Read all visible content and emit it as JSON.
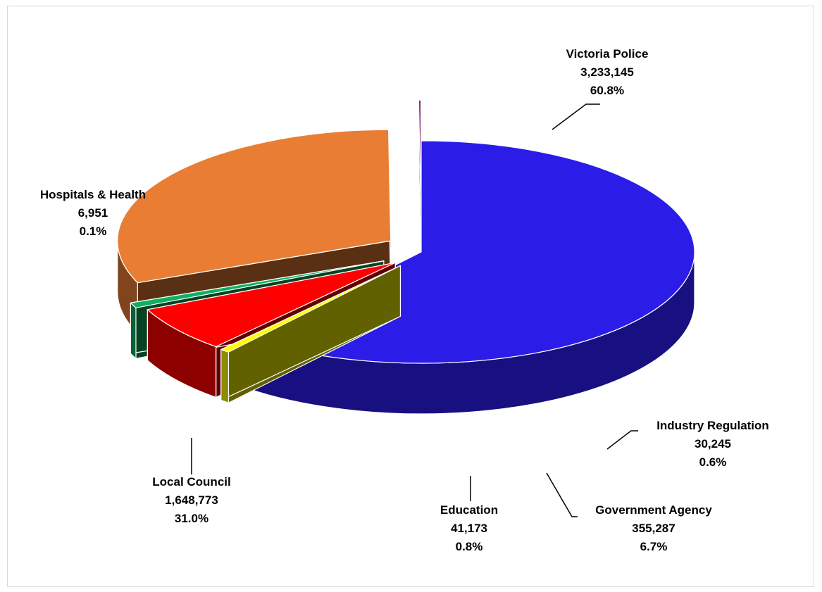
{
  "chart_data": {
    "type": "pie",
    "variant": "3d-exploded",
    "title": "",
    "units": "",
    "slices": [
      {
        "name": "Victoria Police",
        "value": 3233145,
        "value_label": "3,233,145",
        "percent_label": "60.8%",
        "color": "#2b1ce8"
      },
      {
        "name": "Industry Regulation",
        "value": 30245,
        "value_label": "30,245",
        "percent_label": "0.6%",
        "color": "#ffff00"
      },
      {
        "name": "Government Agency",
        "value": 355287,
        "value_label": "355,287",
        "percent_label": "6.7%",
        "color": "#ff0000"
      },
      {
        "name": "Education",
        "value": 41173,
        "value_label": "41,173",
        "percent_label": "0.8%",
        "color": "#10b060"
      },
      {
        "name": "Local Council",
        "value": 1648773,
        "value_label": "1,648,773",
        "percent_label": "31.0%",
        "color": "#e97d33"
      },
      {
        "name": "Hospitals & Health",
        "value": 6951,
        "value_label": "6,951",
        "percent_label": "0.1%",
        "color": "#7a1a6a"
      }
    ]
  }
}
